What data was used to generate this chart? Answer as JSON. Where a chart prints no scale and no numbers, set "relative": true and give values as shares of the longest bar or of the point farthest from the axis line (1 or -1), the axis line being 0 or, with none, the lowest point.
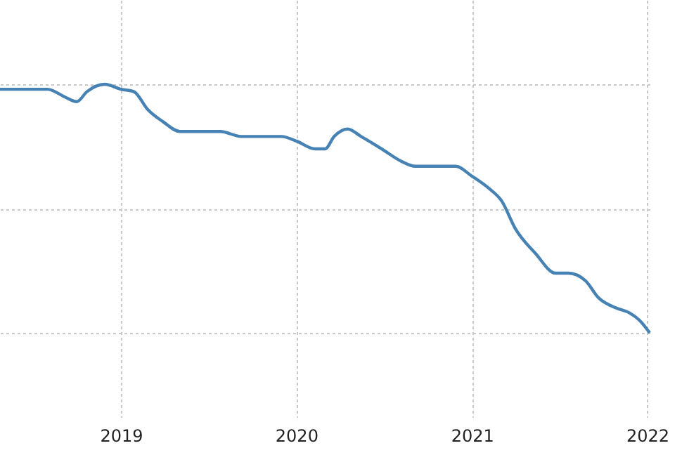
{
  "chart_data": {
    "type": "line",
    "relative": true,
    "grid": true,
    "color": "#4682b4",
    "x": [
      "2018-04-24",
      "2018-05-20",
      "2018-08-01",
      "2018-09-05",
      "2018-10-01",
      "2018-10-22",
      "2018-11-28",
      "2019-01-01",
      "2019-01-28",
      "2019-02-25",
      "2019-03-29",
      "2019-05-04",
      "2019-06-16",
      "2019-07-27",
      "2019-09-08",
      "2019-10-19",
      "2019-12-01",
      "2020-01-03",
      "2020-02-09",
      "2020-03-01",
      "2020-03-20",
      "2020-04-17",
      "2020-05-15",
      "2020-06-27",
      "2020-08-07",
      "2020-09-05",
      "2020-10-03",
      "2020-11-28",
      "2021-01-01",
      "2021-02-06",
      "2021-03-04",
      "2021-04-01",
      "2021-05-13",
      "2021-06-24",
      "2021-07-21",
      "2021-08-25",
      "2021-09-22",
      "2021-10-28",
      "2021-11-25",
      "2021-12-16",
      "2022-01-06"
    ],
    "values": [
      0.98,
      0.98,
      0.98,
      0.95,
      0.93,
      0.97,
      1,
      0.98,
      0.97,
      0.9,
      0.85,
      0.81,
      0.81,
      0.81,
      0.79,
      0.79,
      0.79,
      0.77,
      0.74,
      0.74,
      0.79,
      0.82,
      0.79,
      0.74,
      0.69,
      0.67,
      0.67,
      0.67,
      0.63,
      0.58,
      0.53,
      0.42,
      0.32,
      0.24,
      0.24,
      0.21,
      0.14,
      0.1,
      0.08,
      0.05,
      0
    ],
    "xlim": [
      "2018-04-24",
      "2022-01-06"
    ],
    "xticks": [
      {
        "value": "2019-01-01",
        "label": "2019"
      },
      {
        "value": "2020-01-01",
        "label": "2020"
      },
      {
        "value": "2021-01-01",
        "label": "2021"
      },
      {
        "value": "2022-01-01",
        "label": "2022"
      }
    ]
  }
}
